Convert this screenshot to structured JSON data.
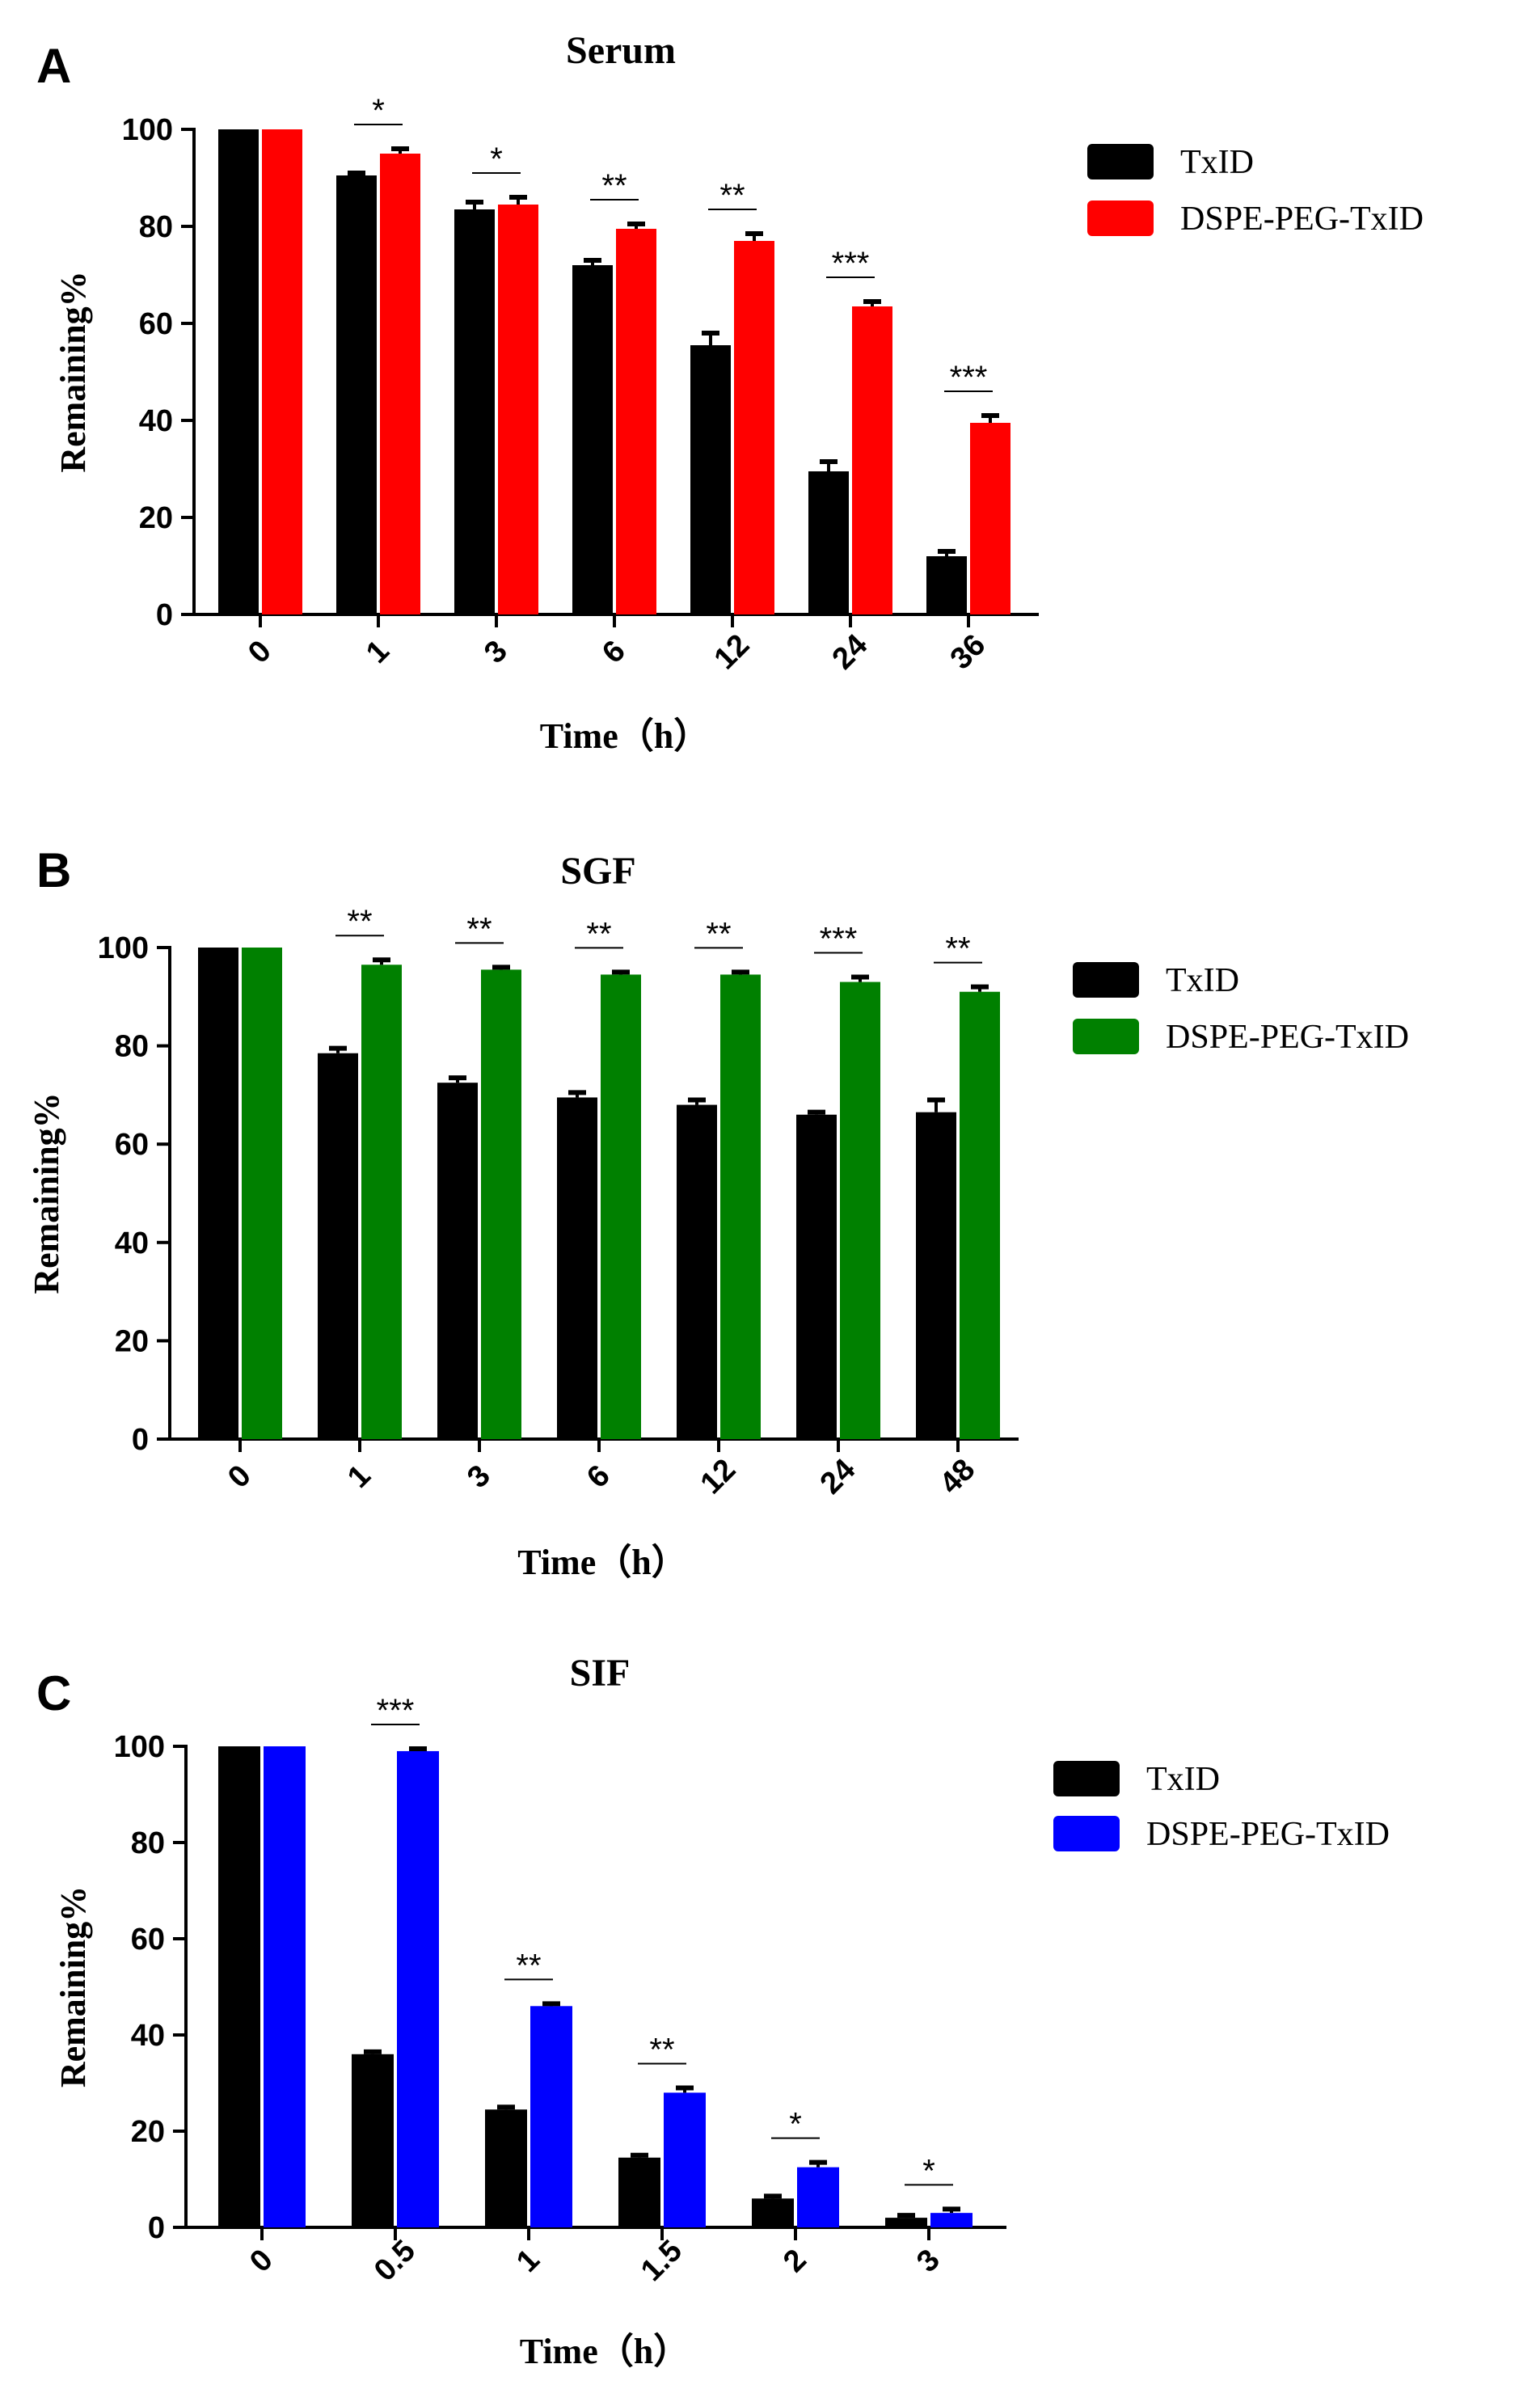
{
  "chart_data": [
    {
      "panel": "A",
      "type": "bar",
      "title": "Serum",
      "xlabel": "Time（h）",
      "ylabel": "Remaining%",
      "ylim": [
        0,
        100
      ],
      "yticks": [
        "0",
        "20",
        "40",
        "60",
        "80",
        "100"
      ],
      "categories": [
        "0",
        "1",
        "3",
        "6",
        "12",
        "24",
        "36"
      ],
      "series": [
        {
          "name": "TxID",
          "color": "#000000",
          "values": [
            100,
            90.5,
            83.5,
            72,
            55.5,
            29.5,
            12
          ],
          "errors": [
            0,
            0.5,
            1.5,
            1,
            2.5,
            2,
            1
          ]
        },
        {
          "name": "DSPE-PEG-TxID",
          "color": "#ff0000",
          "values": [
            100,
            95,
            84.5,
            79.5,
            77,
            63.5,
            39.5
          ],
          "errors": [
            0,
            1,
            1.5,
            1,
            1.5,
            1,
            1.5
          ]
        }
      ],
      "significance": [
        "",
        "*",
        "*",
        "**",
        "**",
        "***",
        "***"
      ],
      "legend": [
        "TxID",
        "DSPE-PEG-TxID"
      ]
    },
    {
      "panel": "B",
      "type": "bar",
      "title": "SGF",
      "xlabel": "Time（h）",
      "ylabel": "Remaining%",
      "ylim": [
        0,
        100
      ],
      "yticks": [
        "0",
        "20",
        "40",
        "60",
        "80",
        "100"
      ],
      "categories": [
        "0",
        "1",
        "3",
        "6",
        "12",
        "24",
        "48"
      ],
      "series": [
        {
          "name": "TxID",
          "color": "#000000",
          "values": [
            100,
            78.5,
            72.5,
            69.5,
            68,
            66,
            66.5
          ],
          "errors": [
            0,
            1,
            1,
            1,
            1,
            0.5,
            2.5
          ]
        },
        {
          "name": "DSPE-PEG-TxID",
          "color": "#008000",
          "values": [
            100,
            96.5,
            95.5,
            94.5,
            94.5,
            93,
            91
          ],
          "errors": [
            0,
            1,
            0.5,
            0.5,
            0.5,
            1,
            1
          ]
        }
      ],
      "significance": [
        "",
        "**",
        "**",
        "**",
        "**",
        "***",
        "**"
      ],
      "legend": [
        "TxID",
        "DSPE-PEG-TxID"
      ]
    },
    {
      "panel": "C",
      "type": "bar",
      "title": "SIF",
      "xlabel": "Time（h）",
      "ylabel": "Remaining%",
      "ylim": [
        0,
        100
      ],
      "yticks": [
        "0",
        "20",
        "40",
        "60",
        "80",
        "100"
      ],
      "categories": [
        "0",
        "0.5",
        "1",
        "1.5",
        "2",
        "3"
      ],
      "series": [
        {
          "name": "TxID",
          "color": "#000000",
          "values": [
            100,
            36,
            24.5,
            14.5,
            6,
            2
          ],
          "errors": [
            0,
            0.5,
            0.5,
            0.5,
            0.5,
            0.5
          ]
        },
        {
          "name": "DSPE-PEG-TxID",
          "color": "#0000ff",
          "values": [
            100,
            99,
            46,
            28,
            12.5,
            3
          ],
          "errors": [
            0,
            0.5,
            0.5,
            1,
            1,
            0.8
          ]
        }
      ],
      "significance": [
        "",
        "***",
        "**",
        "**",
        "*",
        "*"
      ],
      "legend": [
        "TxID",
        "DSPE-PEG-TxID"
      ]
    }
  ]
}
